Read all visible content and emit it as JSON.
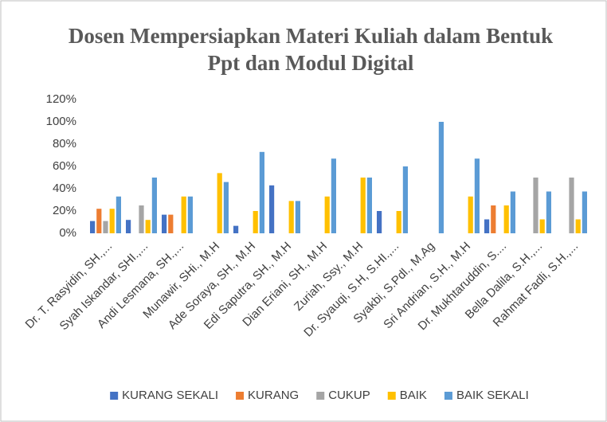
{
  "chart_data": {
    "type": "bar",
    "title": [
      "Dosen Mempersiapkan Materi Kuliah dalam Bentuk",
      "Ppt dan Modul Digital"
    ],
    "categories": [
      "Dr. T. Rasyidin, SH.,...",
      "Syah Iskandar, SHI.,...",
      "Andi Lesmana, SH.,...",
      "Munawir, SHi., M.H",
      "Ade Soraya, SH., M.H",
      "Edi Saputra, SH., M.H",
      "Dian Eriani, SH., M.H",
      "Zuriah, Ssy., M.H",
      "Dr. Syauqi, S.H, S.HI.,...",
      "Syakbi, S.Pdl., M.Ag",
      "Sri Andrian, S.H., M.H",
      "Dr. Mukhtaruddin, S....",
      "Bella Dalila, S.H.,...",
      "Rahmat Fadli, S.H.,..."
    ],
    "series": [
      {
        "name": "KURANG SEKALI",
        "color": "#4472c4",
        "values": [
          11,
          12,
          16.7,
          0,
          6.7,
          43,
          0,
          0,
          20,
          0,
          0,
          12.5,
          0,
          0
        ]
      },
      {
        "name": "KURANG",
        "color": "#ed7d31",
        "values": [
          22,
          0,
          16.7,
          0,
          0,
          0,
          0,
          0,
          0,
          0,
          0,
          25,
          0,
          0
        ]
      },
      {
        "name": "CUKUP",
        "color": "#a5a5a5",
        "values": [
          11,
          25,
          0,
          0,
          0,
          0,
          0,
          0,
          0,
          0,
          0,
          0,
          50,
          50
        ]
      },
      {
        "name": "BAIK",
        "color": "#ffc000",
        "values": [
          22,
          12,
          33,
          54,
          20,
          29,
          33,
          50,
          20,
          0,
          33,
          25,
          12.5,
          12.5
        ]
      },
      {
        "name": "BAIK SEKALI",
        "color": "#5b9bd5",
        "values": [
          33,
          50,
          33,
          46,
          73,
          29,
          67,
          50,
          60,
          100,
          67,
          37.5,
          37.5,
          37.5
        ]
      }
    ],
    "ylim": [
      0,
      120
    ],
    "yticks": [
      {
        "value": 0,
        "label": "0%"
      },
      {
        "value": 20,
        "label": "20%"
      },
      {
        "value": 40,
        "label": "40%"
      },
      {
        "value": 60,
        "label": "60%"
      },
      {
        "value": 80,
        "label": "80%"
      },
      {
        "value": 100,
        "label": "100%"
      },
      {
        "value": 120,
        "label": "120%"
      }
    ],
    "grid": false,
    "legend": "bottom"
  }
}
